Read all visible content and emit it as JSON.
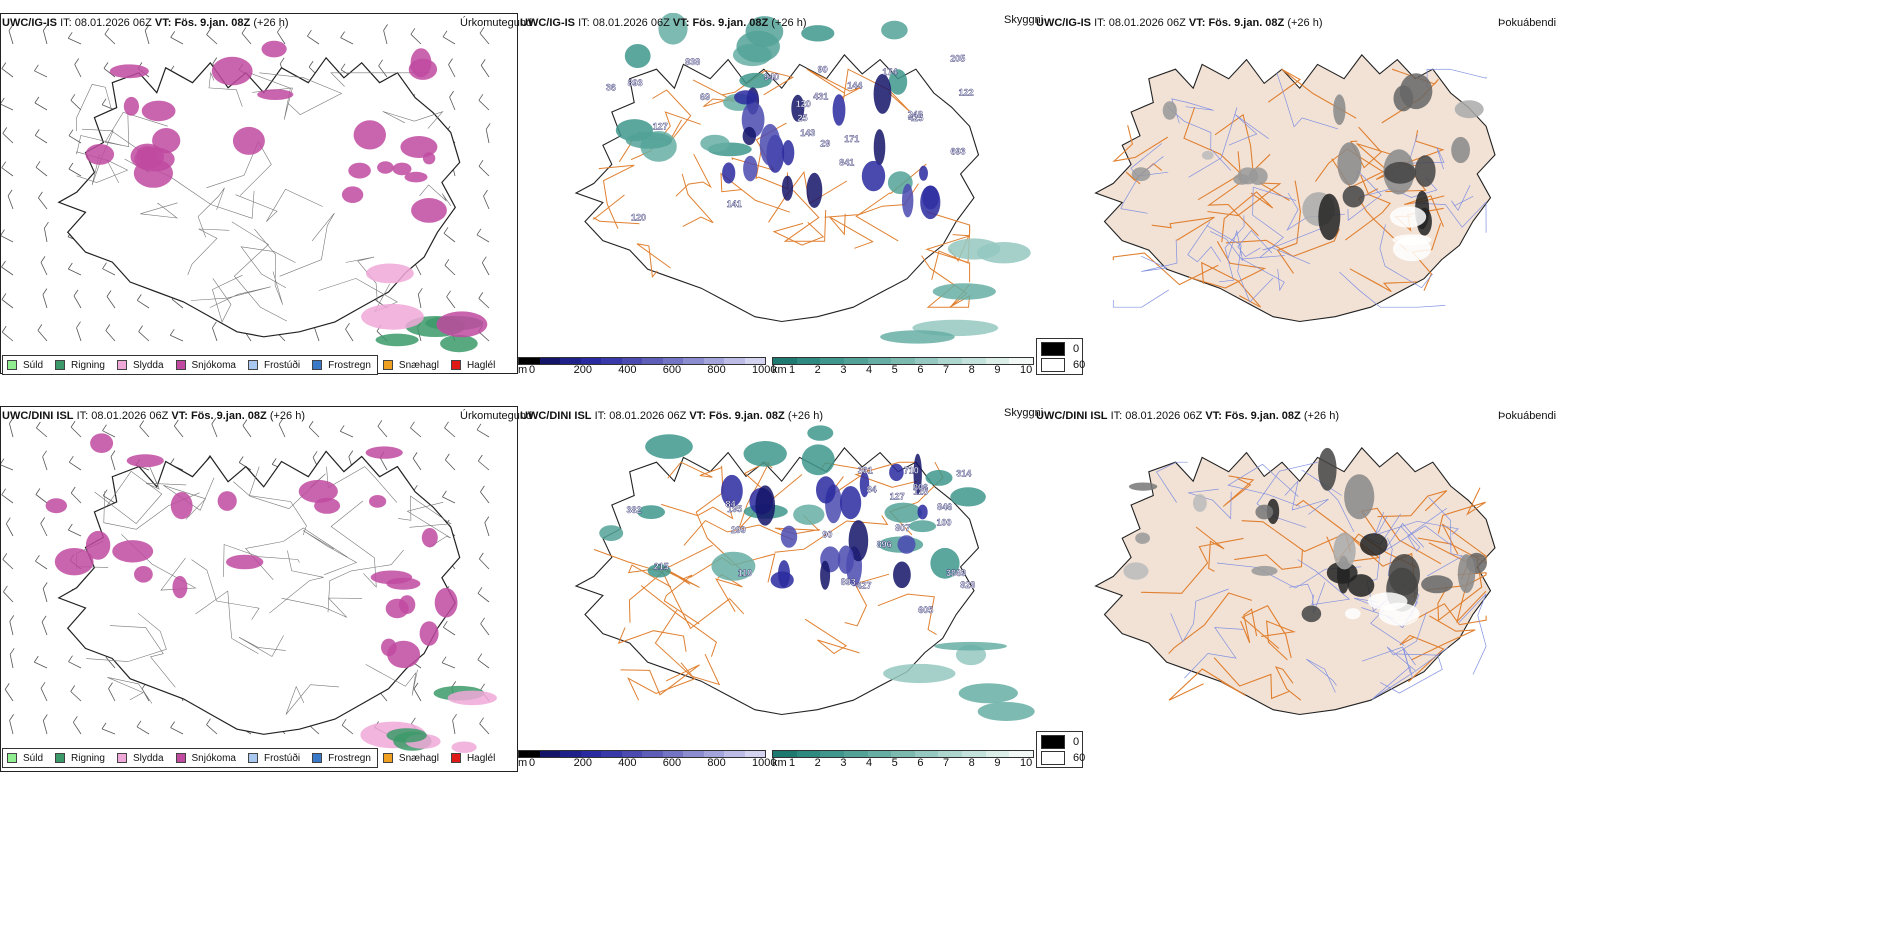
{
  "rows": [
    {
      "model": "UWC/IG-IS",
      "it_label": "IT:",
      "it_value": "08.01.2026 06Z",
      "vt_label": "VT:",
      "vt_value": "Fös. 9.jan. 08Z",
      "lead": "(+26 h)"
    },
    {
      "model": "UWC/DINI ISL",
      "it_label": "IT:",
      "it_value": "08.01.2026 06Z",
      "vt_label": "VT:",
      "vt_value": "Fös. 9.jan. 08Z",
      "lead": "(+26 h)"
    }
  ],
  "panel_titles": {
    "precip": "Úrkomutegund",
    "cloud": "Skyggni",
    "fog": "Þokuábendi"
  },
  "precip_legend": [
    {
      "label": "Súld",
      "color": "#90ee90"
    },
    {
      "label": "Rigning",
      "color": "#3c9a6a"
    },
    {
      "label": "Slydda",
      "color": "#f0a8d8"
    },
    {
      "label": "Snjókoma",
      "color": "#c04aa0"
    },
    {
      "label": "Frostúði",
      "color": "#a8c8f0"
    },
    {
      "label": "Frostregn",
      "color": "#3a78c8"
    },
    {
      "label": "Snæhagl",
      "color": "#f0a020"
    },
    {
      "label": "Haglél",
      "color": "#e01818"
    }
  ],
  "height_bar": {
    "unit": "m",
    "ticks": [
      "0",
      "200",
      "400",
      "600",
      "800",
      "1000"
    ],
    "colors": [
      "#000000",
      "#141468",
      "#20208a",
      "#2a2aa0",
      "#3838a8",
      "#4a4ab0",
      "#5e5eb8",
      "#7474c4",
      "#8c8cd0",
      "#a4a4dc",
      "#bcbce6",
      "#d4d4f0"
    ]
  },
  "vis_bar": {
    "unit": "km",
    "ticks": [
      "1",
      "2",
      "3",
      "4",
      "5",
      "6",
      "7",
      "8",
      "9",
      "10"
    ],
    "colors": [
      "#1e7a70",
      "#2e8a80",
      "#3e968c",
      "#52a298",
      "#66aea4",
      "#7cbab0",
      "#94c8c0",
      "#acd6ce",
      "#c4e2dc",
      "#dceee8",
      "#f2f8f6"
    ]
  },
  "fog_legend": {
    "top": "0",
    "bottom": "60"
  },
  "colors": {
    "land_fog": "#f2e2d6",
    "road": "#e08030",
    "river": "#8090e0",
    "snow": "#c04aa0",
    "rain": "#3c9a6a",
    "sleet": "#f0a8d8",
    "teal": "#3e968c",
    "navy": "#2a2aa0"
  },
  "cloud_labels_top": [
    "893",
    "431",
    "838",
    "940",
    "174",
    "69",
    "90",
    "425",
    "205",
    "248",
    "127",
    "841",
    "120",
    "693",
    "171",
    "122",
    "144",
    "141",
    "143",
    "29",
    "36",
    "25",
    "120"
  ],
  "cloud_labels_bottom": [
    "893",
    "427",
    "823",
    "382",
    "3869",
    "299",
    "195",
    "806",
    "807",
    "710",
    "896",
    "361",
    "605",
    "314",
    "110",
    "127",
    "125",
    "215",
    "846",
    "84",
    "84",
    "90",
    "100"
  ]
}
